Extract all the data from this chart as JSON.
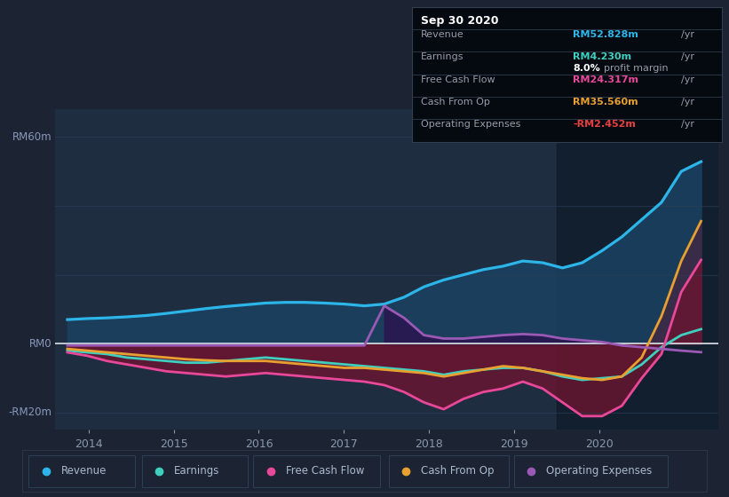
{
  "bg_color": "#1c2333",
  "plot_bg": "#1e2d40",
  "grid_color": "#2a3f58",
  "zero_line_color": "#ffffff",
  "ylabel_rm60": "RM60m",
  "ylabel_rm0": "RM0",
  "ylabel_rmneg20": "-RM20m",
  "ylim": [
    -25,
    68
  ],
  "xlim": [
    2013.6,
    2021.4
  ],
  "x_ticks": [
    2014,
    2015,
    2016,
    2017,
    2018,
    2019,
    2020
  ],
  "revenue_color": "#2cb5e8",
  "earnings_color": "#3ecfbf",
  "fcf_color": "#e8489a",
  "cashfromop_color": "#e8a030",
  "opex_color": "#9b59b6",
  "revenue_fill_color": "#1a4060",
  "fcf_fill_color": "#6b1530",
  "opex_fill_color": "#2a1550",
  "shaded_region_start": 2019.5,
  "shaded_region_color": "#0c1825",
  "revenue": [
    7.0,
    7.3,
    7.5,
    7.8,
    8.2,
    8.8,
    9.5,
    10.2,
    10.8,
    11.3,
    11.8,
    12.0,
    12.0,
    11.8,
    11.5,
    11.0,
    11.5,
    13.5,
    16.5,
    18.5,
    20.0,
    21.5,
    22.5,
    24.0,
    23.5,
    22.0,
    23.5,
    27.0,
    31.0,
    36.0,
    41.0,
    50.0,
    52.828
  ],
  "earnings": [
    -2.0,
    -2.5,
    -3.0,
    -4.0,
    -4.5,
    -5.0,
    -5.5,
    -5.5,
    -5.0,
    -4.5,
    -4.0,
    -4.5,
    -5.0,
    -5.5,
    -6.0,
    -6.5,
    -7.0,
    -7.5,
    -8.0,
    -9.0,
    -8.0,
    -7.5,
    -7.0,
    -7.0,
    -8.0,
    -9.5,
    -10.5,
    -10.0,
    -9.5,
    -6.0,
    -1.0,
    2.5,
    4.23
  ],
  "fcf": [
    -2.5,
    -3.5,
    -5.0,
    -6.0,
    -7.0,
    -8.0,
    -8.5,
    -9.0,
    -9.5,
    -9.0,
    -8.5,
    -9.0,
    -9.5,
    -10.0,
    -10.5,
    -11.0,
    -12.0,
    -14.0,
    -17.0,
    -19.0,
    -16.0,
    -14.0,
    -13.0,
    -11.0,
    -13.0,
    -17.0,
    -21.0,
    -21.0,
    -18.0,
    -10.0,
    -3.0,
    15.0,
    24.317
  ],
  "cashfromop": [
    -1.5,
    -2.0,
    -2.5,
    -3.0,
    -3.5,
    -4.0,
    -4.5,
    -4.8,
    -5.0,
    -5.0,
    -5.0,
    -5.5,
    -6.0,
    -6.5,
    -7.0,
    -7.0,
    -7.5,
    -8.0,
    -8.5,
    -9.5,
    -8.5,
    -7.5,
    -6.5,
    -7.0,
    -8.0,
    -9.0,
    -10.0,
    -10.5,
    -9.5,
    -4.0,
    8.0,
    24.0,
    35.56
  ],
  "opex": [
    -0.5,
    -0.5,
    -0.5,
    -0.5,
    -0.5,
    -0.5,
    -0.5,
    -0.5,
    -0.5,
    -0.5,
    -0.5,
    -0.5,
    -0.5,
    -0.5,
    -0.5,
    -0.5,
    11.0,
    7.5,
    2.5,
    1.5,
    1.5,
    2.0,
    2.5,
    2.8,
    2.5,
    1.5,
    1.0,
    0.5,
    -0.5,
    -1.0,
    -1.5,
    -2.0,
    -2.452
  ],
  "legend_items": [
    {
      "label": "Revenue",
      "color": "#2cb5e8"
    },
    {
      "label": "Earnings",
      "color": "#3ecfbf"
    },
    {
      "label": "Free Cash Flow",
      "color": "#e8489a"
    },
    {
      "label": "Cash From Op",
      "color": "#e8a030"
    },
    {
      "label": "Operating Expenses",
      "color": "#9b59b6"
    }
  ],
  "tooltip_title": "Sep 30 2020",
  "tooltip_rev_label": "Revenue",
  "tooltip_rev_val": "RM52.828m",
  "tooltip_earn_label": "Earnings",
  "tooltip_earn_val": "RM4.230m",
  "tooltip_margin": "8.0%",
  "tooltip_fcf_label": "Free Cash Flow",
  "tooltip_fcf_val": "RM24.317m",
  "tooltip_cashop_label": "Cash From Op",
  "tooltip_cashop_val": "RM35.560m",
  "tooltip_opex_label": "Operating Expenses",
  "tooltip_opex_val": "-RM2.452m"
}
